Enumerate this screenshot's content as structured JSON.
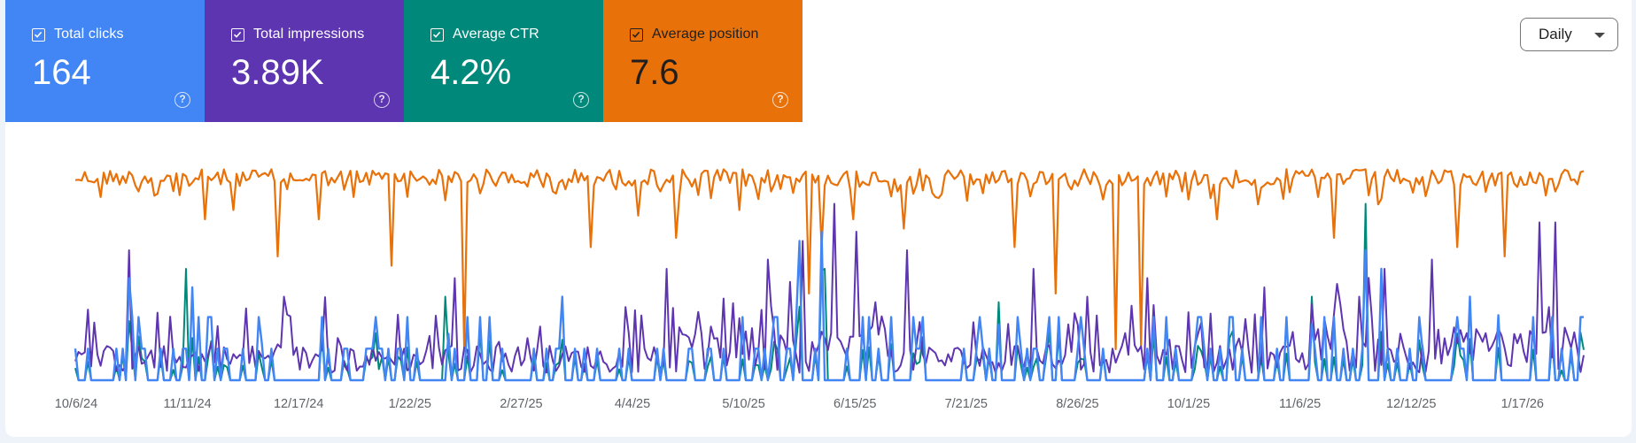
{
  "metrics": [
    {
      "key": "clicks",
      "label": "Total clicks",
      "value": "164",
      "color": "#4285f4",
      "text_color": "#ffffff",
      "checked": true
    },
    {
      "key": "impressions",
      "label": "Total impressions",
      "value": "3.89K",
      "color": "#5e35b1",
      "text_color": "#ffffff",
      "checked": true
    },
    {
      "key": "ctr",
      "label": "Average CTR",
      "value": "4.2%",
      "color": "#00897b",
      "text_color": "#ffffff",
      "checked": true
    },
    {
      "key": "position",
      "label": "Average position",
      "value": "7.6",
      "color": "#e8710a",
      "text_color": "#1f1f1f",
      "checked": true
    }
  ],
  "granularity": {
    "selected": "Daily"
  },
  "help_glyph": "?",
  "chart_data": {
    "type": "line",
    "x_tick_labels": [
      "10/6/24",
      "11/11/24",
      "12/17/24",
      "1/22/25",
      "2/27/25",
      "4/4/25",
      "5/10/25",
      "6/15/25",
      "7/21/25",
      "8/26/25",
      "10/1/25",
      "11/6/25",
      "12/12/25",
      "1/17/26"
    ],
    "x_start": "10/6/24",
    "days": 478,
    "position_dips": [
      [
        8,
        0.18
      ],
      [
        20,
        0.15
      ],
      [
        36,
        0.12
      ],
      [
        41,
        0.3
      ],
      [
        50,
        0.25
      ],
      [
        64,
        0.5
      ],
      [
        77,
        0.3
      ],
      [
        88,
        0.18
      ],
      [
        100,
        0.55
      ],
      [
        119,
        0.1
      ],
      [
        123,
        1.0
      ],
      [
        133,
        0.12
      ],
      [
        151,
        0.15
      ],
      [
        163,
        0.45
      ],
      [
        178,
        0.28
      ],
      [
        190,
        0.4
      ],
      [
        210,
        0.25
      ],
      [
        212,
        0.12
      ],
      [
        220,
        0.15
      ],
      [
        232,
        0.7
      ],
      [
        236,
        0.45
      ],
      [
        246,
        0.3
      ],
      [
        262,
        0.35
      ],
      [
        272,
        0.18
      ],
      [
        282,
        0.2
      ],
      [
        297,
        0.45
      ],
      [
        310,
        0.7
      ],
      [
        317,
        0.12
      ],
      [
        329,
        1.0
      ],
      [
        337,
        0.98
      ],
      [
        350,
        0.15
      ],
      [
        361,
        0.3
      ],
      [
        374,
        0.22
      ],
      [
        393,
        0.18
      ],
      [
        398,
        0.4
      ],
      [
        412,
        0.22
      ],
      [
        437,
        0.45
      ],
      [
        452,
        0.5
      ],
      [
        468,
        0.15
      ]
    ],
    "impression_peaks": [
      [
        17,
        0.7
      ],
      [
        66,
        0.45
      ],
      [
        120,
        0.55
      ],
      [
        187,
        0.6
      ],
      [
        219,
        0.65
      ],
      [
        230,
        0.75
      ],
      [
        240,
        0.95
      ],
      [
        247,
        0.8
      ],
      [
        263,
        0.7
      ],
      [
        303,
        0.6
      ],
      [
        320,
        0.45
      ],
      [
        339,
        0.55
      ],
      [
        376,
        0.5
      ],
      [
        406,
        0.45
      ],
      [
        414,
        0.6
      ],
      [
        429,
        0.65
      ],
      [
        463,
        0.85
      ],
      [
        468,
        0.85
      ]
    ],
    "clicks_peaks": [
      [
        17,
        0.55
      ],
      [
        37,
        0.5
      ],
      [
        59,
        0.2
      ],
      [
        118,
        0.25
      ],
      [
        154,
        0.45
      ],
      [
        229,
        0.75
      ],
      [
        236,
        0.8
      ],
      [
        292,
        0.3
      ],
      [
        391,
        0.3
      ],
      [
        408,
        0.7
      ],
      [
        413,
        0.6
      ],
      [
        441,
        0.45
      ],
      [
        450,
        0.35
      ]
    ],
    "ctr_peaks": [
      [
        35,
        0.6
      ],
      [
        117,
        0.45
      ],
      [
        237,
        0.6
      ],
      [
        292,
        0.42
      ],
      [
        391,
        0.45
      ],
      [
        408,
        0.95
      ]
    ]
  }
}
